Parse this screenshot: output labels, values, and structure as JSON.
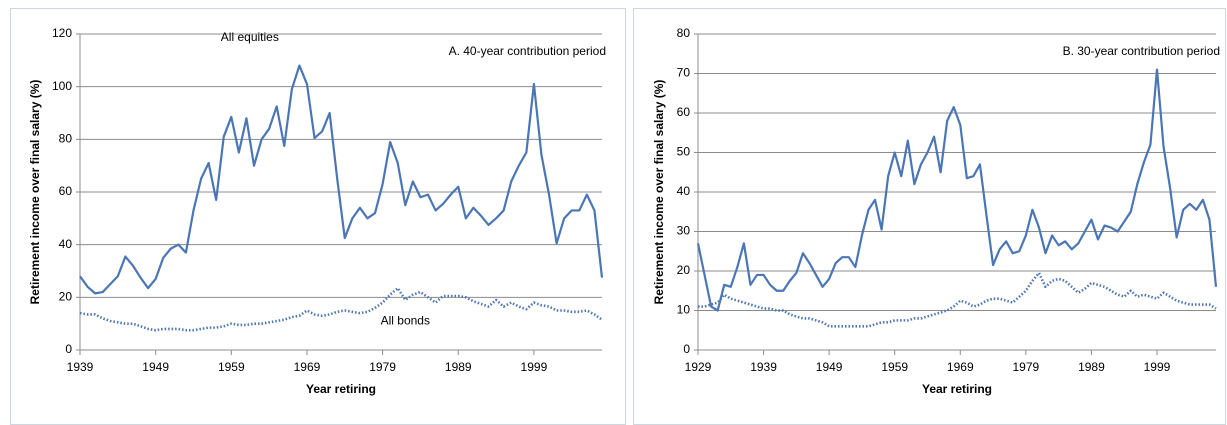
{
  "chart_data": [
    {
      "type": "line",
      "title": "A. 40-year contribution period",
      "x_label": "Year retiring",
      "y_label": "Retirement income over final salary (%)",
      "x": [
        1939,
        1940,
        1941,
        1942,
        1943,
        1944,
        1945,
        1946,
        1947,
        1948,
        1949,
        1950,
        1951,
        1952,
        1953,
        1954,
        1955,
        1956,
        1957,
        1958,
        1959,
        1960,
        1961,
        1962,
        1963,
        1964,
        1965,
        1966,
        1967,
        1968,
        1969,
        1970,
        1971,
        1972,
        1973,
        1974,
        1975,
        1976,
        1977,
        1978,
        1979,
        1980,
        1981,
        1982,
        1983,
        1984,
        1985,
        1986,
        1987,
        1988,
        1989,
        1990,
        1991,
        1992,
        1993,
        1994,
        1995,
        1996,
        1997,
        1998,
        1999,
        2000,
        2001,
        2002,
        2003,
        2004,
        2005,
        2006,
        2007,
        2008
      ],
      "xlim": [
        1939,
        2008
      ],
      "xticks": [
        1939,
        1949,
        1959,
        1969,
        1979,
        1989,
        1999
      ],
      "ylim": [
        0,
        120
      ],
      "yticks": [
        0,
        20,
        40,
        60,
        80,
        100,
        120
      ],
      "grid": true,
      "series": [
        {
          "name": "All equities",
          "color": "#4a76b6",
          "dash": "solid",
          "values": [
            28,
            24,
            21.5,
            22,
            25,
            28,
            35.5,
            32,
            27.5,
            23.5,
            27,
            35,
            38.5,
            40,
            37,
            53,
            65,
            71,
            57,
            81,
            88.5,
            75,
            88,
            70,
            80,
            84,
            92.5,
            77.5,
            99,
            108,
            101,
            80.5,
            83,
            90,
            65,
            42.5,
            50,
            54,
            50,
            52,
            63,
            79,
            71,
            55,
            64,
            58,
            59,
            53,
            55.5,
            59,
            62,
            50,
            54,
            51,
            47.5,
            50,
            53,
            64,
            70,
            75,
            101,
            74,
            59,
            40.5,
            50,
            53,
            53,
            59,
            53,
            27.5
          ]
        },
        {
          "name": "All bonds",
          "color": "#4a76b6",
          "dash": "dotted",
          "values": [
            14,
            13.5,
            13.5,
            12,
            11,
            10.5,
            10,
            10,
            9,
            8,
            7.5,
            8,
            8,
            8,
            7.5,
            7.5,
            8,
            8.5,
            8.5,
            9,
            10,
            9.5,
            9.5,
            10,
            10,
            10.5,
            11,
            11.5,
            12.5,
            13,
            15,
            13.5,
            13,
            13.5,
            14.5,
            15,
            14.5,
            14,
            14.5,
            16,
            18,
            21,
            23.5,
            19,
            21,
            22,
            20,
            18,
            20.5,
            20.5,
            20.5,
            20,
            18.5,
            17.5,
            16.5,
            19,
            16.5,
            18,
            16.5,
            15.5,
            18,
            17,
            16.5,
            15,
            15,
            14.5,
            14.5,
            15,
            13.5,
            11.5
          ]
        }
      ]
    },
    {
      "type": "line",
      "title": "B. 30-year contribution period",
      "x_label": "Year retiring",
      "y_label": "Retirement income over final salary (%)",
      "x": [
        1929,
        1930,
        1931,
        1932,
        1933,
        1934,
        1935,
        1936,
        1937,
        1938,
        1939,
        1940,
        1941,
        1942,
        1943,
        1944,
        1945,
        1946,
        1947,
        1948,
        1949,
        1950,
        1951,
        1952,
        1953,
        1954,
        1955,
        1956,
        1957,
        1958,
        1959,
        1960,
        1961,
        1962,
        1963,
        1964,
        1965,
        1966,
        1967,
        1968,
        1969,
        1970,
        1971,
        1972,
        1973,
        1974,
        1975,
        1976,
        1977,
        1978,
        1979,
        1980,
        1981,
        1982,
        1983,
        1984,
        1985,
        1986,
        1987,
        1988,
        1989,
        1990,
        1991,
        1992,
        1993,
        1994,
        1995,
        1996,
        1997,
        1998,
        1999,
        2000,
        2001,
        2002,
        2003,
        2004,
        2005,
        2006,
        2007,
        2008
      ],
      "xlim": [
        1929,
        2008
      ],
      "xticks": [
        1929,
        1939,
        1949,
        1959,
        1969,
        1979,
        1989,
        1999
      ],
      "ylim": [
        0,
        80
      ],
      "yticks": [
        0,
        10,
        20,
        30,
        40,
        50,
        60,
        70,
        80
      ],
      "grid": true,
      "series": [
        {
          "color": "#4a76b6",
          "dash": "solid",
          "values": [
            27,
            19,
            11,
            10,
            16.5,
            16,
            21,
            27,
            16.5,
            19,
            19,
            16.5,
            15,
            15,
            17.5,
            19.5,
            24.5,
            22,
            19,
            16,
            18,
            22,
            23.5,
            23.5,
            21,
            29,
            35.5,
            38,
            30.5,
            44,
            50,
            44,
            53,
            42,
            47,
            50,
            54,
            45,
            58,
            61.5,
            57,
            43.5,
            44,
            47,
            34,
            21.5,
            25.5,
            27.5,
            24.5,
            25,
            29,
            35.5,
            31,
            24.5,
            29,
            26.5,
            27.5,
            25.5,
            27,
            30,
            33,
            28,
            31.5,
            31,
            30,
            32.5,
            35,
            42,
            47.5,
            52,
            71,
            51.5,
            41,
            28.5,
            35.5,
            37,
            35.5,
            38,
            33,
            16
          ]
        },
        {
          "color": "#4a76b6",
          "dash": "dotted",
          "values": [
            11,
            11,
            11.5,
            12,
            14,
            13,
            12.5,
            12,
            11.5,
            11,
            10.5,
            10.5,
            10,
            10,
            9,
            8.5,
            8,
            8,
            7.5,
            7,
            6,
            6,
            6,
            6,
            6,
            6,
            6,
            6.5,
            7,
            7,
            7.5,
            7.5,
            7.5,
            8,
            8,
            8.5,
            9,
            9.5,
            10,
            11,
            12.5,
            12,
            11,
            11.5,
            12.5,
            13,
            13,
            12.5,
            12,
            13.5,
            15,
            17.5,
            19.5,
            16,
            17.5,
            18,
            17.5,
            16,
            14.5,
            15.5,
            17,
            16.5,
            16,
            15,
            14,
            13.5,
            15,
            13.5,
            14,
            13.5,
            13,
            14.5,
            13.5,
            12.5,
            12,
            11.5,
            11.5,
            11.5,
            11.5,
            10.5
          ]
        }
      ]
    }
  ]
}
